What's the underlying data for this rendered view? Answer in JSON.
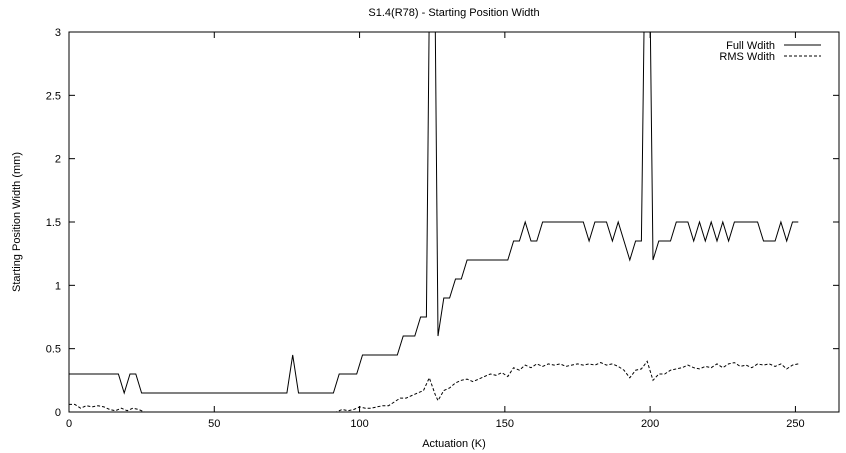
{
  "chart_data": {
    "type": "line",
    "title": "S1.4(R78) - Starting Position Width",
    "xlabel": "Actuation (K)",
    "ylabel": "Starting Position Width (mm)",
    "xlim": [
      0,
      265
    ],
    "ylim": [
      0,
      3
    ],
    "xticks": [
      0,
      50,
      100,
      150,
      200,
      250
    ],
    "yticks": [
      0,
      0.5,
      1,
      1.5,
      2,
      2.5,
      3
    ],
    "grid": false,
    "legend_position": "top-right",
    "series": [
      {
        "name": "Full Wdith",
        "style": "solid",
        "color": "#000000",
        "points": [
          [
            0,
            0.3
          ],
          [
            17,
            0.3
          ],
          [
            19,
            0.15
          ],
          [
            21,
            0.3
          ],
          [
            23,
            0.3
          ],
          [
            25,
            0.15
          ],
          [
            75,
            0.15
          ],
          [
            77,
            0.45
          ],
          [
            79,
            0.15
          ],
          [
            91,
            0.15
          ],
          [
            93,
            0.3
          ],
          [
            99,
            0.3
          ],
          [
            101,
            0.45
          ],
          [
            113,
            0.45
          ],
          [
            115,
            0.6
          ],
          [
            119,
            0.6
          ],
          [
            121,
            0.75
          ],
          [
            123,
            0.75
          ],
          [
            124,
            3.2
          ],
          [
            126,
            3.2
          ],
          [
            127,
            0.6
          ],
          [
            129,
            0.9
          ],
          [
            131,
            0.9
          ],
          [
            133,
            1.05
          ],
          [
            135,
            1.05
          ],
          [
            137,
            1.2
          ],
          [
            151,
            1.2
          ],
          [
            153,
            1.35
          ],
          [
            155,
            1.35
          ],
          [
            157,
            1.5
          ],
          [
            159,
            1.35
          ],
          [
            161,
            1.35
          ],
          [
            163,
            1.5
          ],
          [
            177,
            1.5
          ],
          [
            179,
            1.35
          ],
          [
            181,
            1.5
          ],
          [
            185,
            1.5
          ],
          [
            187,
            1.35
          ],
          [
            189,
            1.5
          ],
          [
            191,
            1.35
          ],
          [
            193,
            1.2
          ],
          [
            195,
            1.35
          ],
          [
            197,
            1.35
          ],
          [
            198,
            3.2
          ],
          [
            200,
            3.2
          ],
          [
            201,
            1.2
          ],
          [
            203,
            1.35
          ],
          [
            207,
            1.35
          ],
          [
            209,
            1.5
          ],
          [
            213,
            1.5
          ],
          [
            215,
            1.35
          ],
          [
            217,
            1.5
          ],
          [
            219,
            1.35
          ],
          [
            221,
            1.5
          ],
          [
            223,
            1.35
          ],
          [
            225,
            1.5
          ],
          [
            227,
            1.35
          ],
          [
            229,
            1.5
          ],
          [
            237,
            1.5
          ],
          [
            239,
            1.35
          ],
          [
            243,
            1.35
          ],
          [
            245,
            1.5
          ],
          [
            247,
            1.35
          ],
          [
            249,
            1.5
          ],
          [
            251,
            1.5
          ]
        ]
      },
      {
        "name": "RMS Wdith",
        "style": "dashed",
        "color": "#000000",
        "points": [
          [
            0,
            0.06
          ],
          [
            2,
            0.06
          ],
          [
            4,
            0.03
          ],
          [
            6,
            0.05
          ],
          [
            8,
            0.04
          ],
          [
            10,
            0.05
          ],
          [
            12,
            0.04
          ],
          [
            14,
            0.02
          ],
          [
            16,
            0.01
          ],
          [
            18,
            0.03
          ],
          [
            20,
            0.01
          ],
          [
            22,
            0.03
          ],
          [
            24,
            0.02
          ],
          [
            26,
            0.0
          ],
          [
            92,
            0.0
          ],
          [
            94,
            0.02
          ],
          [
            96,
            0.01
          ],
          [
            98,
            0.02
          ],
          [
            100,
            0.04
          ],
          [
            102,
            0.03
          ],
          [
            104,
            0.03
          ],
          [
            106,
            0.04
          ],
          [
            108,
            0.05
          ],
          [
            110,
            0.05
          ],
          [
            112,
            0.08
          ],
          [
            114,
            0.11
          ],
          [
            116,
            0.11
          ],
          [
            118,
            0.13
          ],
          [
            120,
            0.15
          ],
          [
            122,
            0.17
          ],
          [
            124,
            0.27
          ],
          [
            126,
            0.14
          ],
          [
            127,
            0.09
          ],
          [
            129,
            0.17
          ],
          [
            131,
            0.19
          ],
          [
            133,
            0.23
          ],
          [
            135,
            0.25
          ],
          [
            137,
            0.26
          ],
          [
            139,
            0.24
          ],
          [
            141,
            0.26
          ],
          [
            143,
            0.28
          ],
          [
            145,
            0.3
          ],
          [
            147,
            0.29
          ],
          [
            149,
            0.31
          ],
          [
            151,
            0.28
          ],
          [
            153,
            0.35
          ],
          [
            155,
            0.33
          ],
          [
            157,
            0.37
          ],
          [
            159,
            0.35
          ],
          [
            161,
            0.38
          ],
          [
            163,
            0.36
          ],
          [
            165,
            0.38
          ],
          [
            167,
            0.37
          ],
          [
            169,
            0.38
          ],
          [
            171,
            0.36
          ],
          [
            173,
            0.37
          ],
          [
            175,
            0.38
          ],
          [
            177,
            0.37
          ],
          [
            179,
            0.38
          ],
          [
            181,
            0.37
          ],
          [
            183,
            0.39
          ],
          [
            185,
            0.37
          ],
          [
            187,
            0.38
          ],
          [
            189,
            0.36
          ],
          [
            191,
            0.33
          ],
          [
            193,
            0.27
          ],
          [
            195,
            0.33
          ],
          [
            197,
            0.34
          ],
          [
            199,
            0.4
          ],
          [
            201,
            0.25
          ],
          [
            203,
            0.3
          ],
          [
            205,
            0.3
          ],
          [
            207,
            0.33
          ],
          [
            209,
            0.34
          ],
          [
            211,
            0.35
          ],
          [
            213,
            0.37
          ],
          [
            215,
            0.35
          ],
          [
            217,
            0.34
          ],
          [
            219,
            0.36
          ],
          [
            221,
            0.35
          ],
          [
            223,
            0.38
          ],
          [
            225,
            0.35
          ],
          [
            227,
            0.38
          ],
          [
            229,
            0.39
          ],
          [
            231,
            0.36
          ],
          [
            233,
            0.37
          ],
          [
            235,
            0.35
          ],
          [
            237,
            0.38
          ],
          [
            239,
            0.37
          ],
          [
            241,
            0.38
          ],
          [
            243,
            0.36
          ],
          [
            245,
            0.38
          ],
          [
            247,
            0.34
          ],
          [
            249,
            0.37
          ],
          [
            251,
            0.38
          ]
        ]
      }
    ]
  }
}
